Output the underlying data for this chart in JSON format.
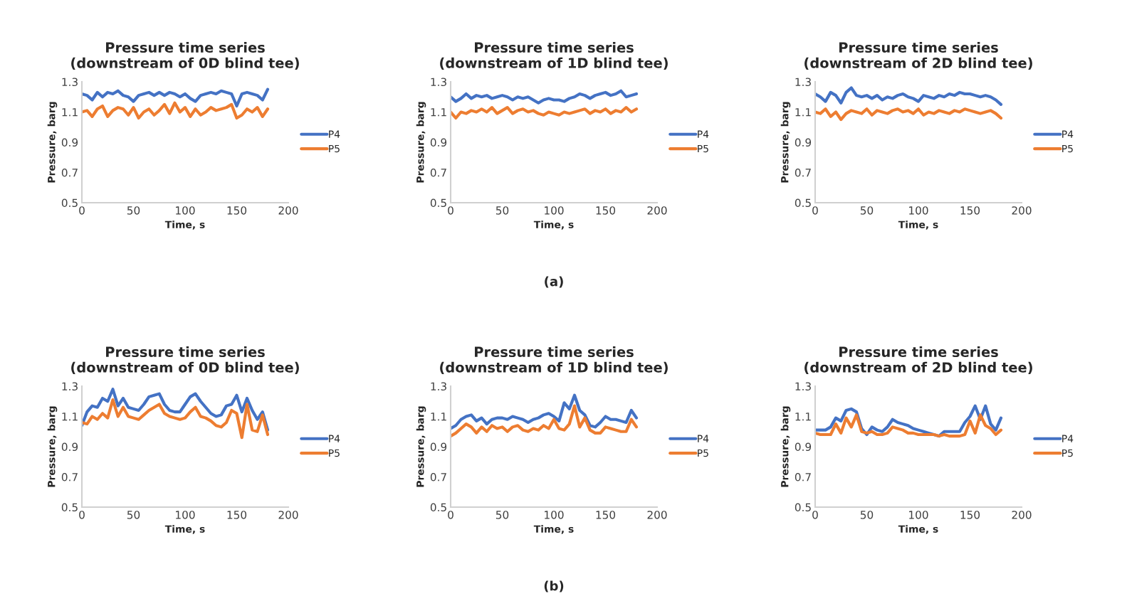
{
  "chart_data": [
    {
      "type": "line",
      "title": "Pressure time series\n(downstream of 0D blind tee)",
      "xlabel": "Time, s",
      "ylabel": "Pressure, barg",
      "xlim": [
        0,
        200
      ],
      "xticks": [
        0,
        50,
        100,
        150,
        200
      ],
      "ylim": [
        0.5,
        1.3
      ],
      "yticks": [
        0.5,
        0.7,
        0.9,
        1.1,
        1.3
      ],
      "grid": false,
      "legend": "right",
      "x": [
        0,
        5,
        10,
        15,
        20,
        25,
        30,
        35,
        40,
        45,
        50,
        55,
        60,
        65,
        70,
        75,
        80,
        85,
        90,
        95,
        100,
        105,
        110,
        115,
        120,
        125,
        130,
        135,
        140,
        145,
        150,
        155,
        160,
        165,
        170,
        175,
        180
      ],
      "series": [
        {
          "name": "P4",
          "color": "#4472c4",
          "values": [
            1.22,
            1.21,
            1.18,
            1.23,
            1.2,
            1.23,
            1.22,
            1.24,
            1.21,
            1.2,
            1.17,
            1.21,
            1.22,
            1.23,
            1.21,
            1.23,
            1.21,
            1.23,
            1.22,
            1.2,
            1.22,
            1.19,
            1.17,
            1.21,
            1.22,
            1.23,
            1.22,
            1.24,
            1.23,
            1.22,
            1.14,
            1.22,
            1.23,
            1.22,
            1.21,
            1.18,
            1.25
          ]
        },
        {
          "name": "P5",
          "color": "#ed7d31",
          "values": [
            1.1,
            1.11,
            1.07,
            1.12,
            1.14,
            1.07,
            1.11,
            1.13,
            1.12,
            1.08,
            1.13,
            1.06,
            1.1,
            1.12,
            1.08,
            1.11,
            1.15,
            1.09,
            1.16,
            1.1,
            1.13,
            1.07,
            1.12,
            1.08,
            1.1,
            1.13,
            1.11,
            1.12,
            1.13,
            1.15,
            1.06,
            1.08,
            1.12,
            1.1,
            1.13,
            1.07,
            1.12
          ]
        }
      ]
    },
    {
      "type": "line",
      "title": "Pressure time series\n(downstream of 1D blind tee)",
      "xlabel": "Time, s",
      "ylabel": "Pressure, barg",
      "xlim": [
        0,
        200
      ],
      "xticks": [
        0,
        50,
        100,
        150,
        200
      ],
      "ylim": [
        0.5,
        1.3
      ],
      "yticks": [
        0.5,
        0.7,
        0.9,
        1.1,
        1.3
      ],
      "grid": false,
      "legend": "right",
      "annotations": [
        "(a)"
      ],
      "x": [
        0,
        5,
        10,
        15,
        20,
        25,
        30,
        35,
        40,
        45,
        50,
        55,
        60,
        65,
        70,
        75,
        80,
        85,
        90,
        95,
        100,
        105,
        110,
        115,
        120,
        125,
        130,
        135,
        140,
        145,
        150,
        155,
        160,
        165,
        170,
        175,
        180
      ],
      "series": [
        {
          "name": "P4",
          "color": "#4472c4",
          "values": [
            1.2,
            1.17,
            1.19,
            1.22,
            1.19,
            1.21,
            1.2,
            1.21,
            1.19,
            1.2,
            1.21,
            1.2,
            1.18,
            1.2,
            1.19,
            1.2,
            1.18,
            1.16,
            1.18,
            1.19,
            1.18,
            1.18,
            1.17,
            1.19,
            1.2,
            1.22,
            1.21,
            1.19,
            1.21,
            1.22,
            1.23,
            1.21,
            1.22,
            1.24,
            1.2,
            1.21,
            1.22
          ]
        },
        {
          "name": "P5",
          "color": "#ed7d31",
          "values": [
            1.1,
            1.06,
            1.1,
            1.09,
            1.11,
            1.1,
            1.12,
            1.1,
            1.13,
            1.09,
            1.11,
            1.13,
            1.09,
            1.11,
            1.12,
            1.1,
            1.11,
            1.09,
            1.08,
            1.1,
            1.09,
            1.08,
            1.1,
            1.09,
            1.1,
            1.11,
            1.12,
            1.09,
            1.11,
            1.1,
            1.12,
            1.09,
            1.11,
            1.1,
            1.13,
            1.1,
            1.12
          ]
        }
      ]
    },
    {
      "type": "line",
      "title": "Pressure time series\n(downstream of 2D blind tee)",
      "xlabel": "Time, s",
      "ylabel": "Pressure, barg",
      "xlim": [
        0,
        200
      ],
      "xticks": [
        0,
        50,
        100,
        150,
        200
      ],
      "ylim": [
        0.5,
        1.3
      ],
      "yticks": [
        0.5,
        0.7,
        0.9,
        1.1,
        1.3
      ],
      "grid": false,
      "legend": "right",
      "x": [
        0,
        5,
        10,
        15,
        20,
        25,
        30,
        35,
        40,
        45,
        50,
        55,
        60,
        65,
        70,
        75,
        80,
        85,
        90,
        95,
        100,
        105,
        110,
        115,
        120,
        125,
        130,
        135,
        140,
        145,
        150,
        155,
        160,
        165,
        170,
        175,
        180
      ],
      "series": [
        {
          "name": "P4",
          "color": "#4472c4",
          "values": [
            1.22,
            1.2,
            1.17,
            1.23,
            1.21,
            1.16,
            1.23,
            1.26,
            1.21,
            1.2,
            1.21,
            1.19,
            1.21,
            1.18,
            1.2,
            1.19,
            1.21,
            1.22,
            1.2,
            1.19,
            1.17,
            1.21,
            1.2,
            1.19,
            1.21,
            1.2,
            1.22,
            1.21,
            1.23,
            1.22,
            1.22,
            1.21,
            1.2,
            1.21,
            1.2,
            1.18,
            1.15
          ]
        },
        {
          "name": "P5",
          "color": "#ed7d31",
          "values": [
            1.1,
            1.09,
            1.12,
            1.07,
            1.1,
            1.05,
            1.09,
            1.11,
            1.1,
            1.09,
            1.12,
            1.08,
            1.11,
            1.1,
            1.09,
            1.11,
            1.12,
            1.1,
            1.11,
            1.09,
            1.12,
            1.08,
            1.1,
            1.09,
            1.11,
            1.1,
            1.09,
            1.11,
            1.1,
            1.12,
            1.11,
            1.1,
            1.09,
            1.1,
            1.11,
            1.09,
            1.06
          ]
        }
      ]
    },
    {
      "type": "line",
      "title": "Pressure time series\n(downstream of 0D blind tee)",
      "xlabel": "Time, s",
      "ylabel": "Pressure, barg",
      "xlim": [
        0,
        200
      ],
      "xticks": [
        0,
        50,
        100,
        150,
        200
      ],
      "ylim": [
        0.5,
        1.3
      ],
      "yticks": [
        0.5,
        0.7,
        0.9,
        1.1,
        1.3
      ],
      "grid": false,
      "legend": "right",
      "x": [
        0,
        5,
        10,
        15,
        20,
        25,
        30,
        35,
        40,
        45,
        50,
        55,
        60,
        65,
        70,
        75,
        80,
        85,
        90,
        95,
        100,
        105,
        110,
        115,
        120,
        125,
        130,
        135,
        140,
        145,
        150,
        155,
        160,
        165,
        170,
        175,
        180
      ],
      "series": [
        {
          "name": "P4",
          "color": "#4472c4",
          "values": [
            1.04,
            1.13,
            1.17,
            1.16,
            1.22,
            1.2,
            1.28,
            1.17,
            1.22,
            1.16,
            1.15,
            1.14,
            1.18,
            1.23,
            1.24,
            1.25,
            1.18,
            1.14,
            1.13,
            1.13,
            1.18,
            1.23,
            1.25,
            1.2,
            1.16,
            1.12,
            1.1,
            1.11,
            1.17,
            1.18,
            1.24,
            1.13,
            1.22,
            1.14,
            1.08,
            1.13,
            1.01
          ]
        },
        {
          "name": "P5",
          "color": "#ed7d31",
          "values": [
            1.06,
            1.05,
            1.1,
            1.08,
            1.12,
            1.09,
            1.21,
            1.1,
            1.16,
            1.1,
            1.09,
            1.08,
            1.11,
            1.14,
            1.16,
            1.18,
            1.12,
            1.1,
            1.09,
            1.08,
            1.09,
            1.13,
            1.16,
            1.1,
            1.09,
            1.07,
            1.04,
            1.03,
            1.06,
            1.14,
            1.12,
            0.96,
            1.18,
            1.01,
            1.0,
            1.11,
            0.98
          ]
        }
      ]
    },
    {
      "type": "line",
      "title": "Pressure time series\n(downstream of 1D blind tee)",
      "xlabel": "Time, s",
      "ylabel": "Pressure, barg",
      "xlim": [
        0,
        200
      ],
      "xticks": [
        0,
        50,
        100,
        150,
        200
      ],
      "ylim": [
        0.5,
        1.3
      ],
      "yticks": [
        0.5,
        0.7,
        0.9,
        1.1,
        1.3
      ],
      "grid": false,
      "legend": "right",
      "annotations": [
        "(b)"
      ],
      "x": [
        0,
        5,
        10,
        15,
        20,
        25,
        30,
        35,
        40,
        45,
        50,
        55,
        60,
        65,
        70,
        75,
        80,
        85,
        90,
        95,
        100,
        105,
        110,
        115,
        120,
        125,
        130,
        135,
        140,
        145,
        150,
        155,
        160,
        165,
        170,
        175,
        180
      ],
      "series": [
        {
          "name": "P4",
          "color": "#4472c4",
          "values": [
            1.02,
            1.04,
            1.08,
            1.1,
            1.11,
            1.07,
            1.09,
            1.05,
            1.08,
            1.09,
            1.09,
            1.08,
            1.1,
            1.09,
            1.08,
            1.06,
            1.08,
            1.09,
            1.11,
            1.12,
            1.1,
            1.07,
            1.19,
            1.15,
            1.24,
            1.14,
            1.11,
            1.04,
            1.03,
            1.06,
            1.1,
            1.08,
            1.08,
            1.07,
            1.06,
            1.14,
            1.09
          ]
        },
        {
          "name": "P5",
          "color": "#ed7d31",
          "values": [
            0.97,
            0.99,
            1.02,
            1.05,
            1.03,
            0.99,
            1.03,
            1.0,
            1.04,
            1.02,
            1.03,
            1.0,
            1.03,
            1.04,
            1.01,
            1.0,
            1.02,
            1.01,
            1.04,
            1.02,
            1.08,
            1.02,
            1.01,
            1.05,
            1.17,
            1.03,
            1.09,
            1.01,
            0.99,
            0.99,
            1.03,
            1.02,
            1.01,
            1.0,
            1.0,
            1.08,
            1.03
          ]
        }
      ]
    },
    {
      "type": "line",
      "title": "Pressure time series\n(downstream of 2D blind tee)",
      "xlabel": "Time, s",
      "ylabel": "Pressure, barg",
      "xlim": [
        0,
        200
      ],
      "xticks": [
        0,
        50,
        100,
        150,
        200
      ],
      "ylim": [
        0.5,
        1.3
      ],
      "yticks": [
        0.5,
        0.7,
        0.9,
        1.1,
        1.3
      ],
      "grid": false,
      "legend": "right",
      "x": [
        0,
        5,
        10,
        15,
        20,
        25,
        30,
        35,
        40,
        45,
        50,
        55,
        60,
        65,
        70,
        75,
        80,
        85,
        90,
        95,
        100,
        105,
        110,
        115,
        120,
        125,
        130,
        135,
        140,
        145,
        150,
        155,
        160,
        165,
        170,
        175,
        180
      ],
      "series": [
        {
          "name": "P4",
          "color": "#4472c4",
          "values": [
            1.01,
            1.01,
            1.01,
            1.03,
            1.09,
            1.07,
            1.14,
            1.15,
            1.13,
            1.02,
            0.98,
            1.03,
            1.01,
            1.0,
            1.03,
            1.08,
            1.06,
            1.05,
            1.04,
            1.02,
            1.01,
            1.0,
            0.99,
            0.98,
            0.97,
            1.0,
            1.0,
            1.0,
            1.0,
            1.06,
            1.1,
            1.17,
            1.08,
            1.17,
            1.05,
            1.01,
            1.09
          ]
        },
        {
          "name": "P5",
          "color": "#ed7d31",
          "values": [
            0.99,
            0.98,
            0.98,
            0.98,
            1.05,
            0.99,
            1.09,
            1.03,
            1.11,
            1.0,
            0.99,
            1.0,
            0.98,
            0.98,
            0.99,
            1.03,
            1.02,
            1.01,
            0.99,
            0.99,
            0.98,
            0.98,
            0.98,
            0.98,
            0.97,
            0.98,
            0.97,
            0.97,
            0.97,
            0.98,
            1.07,
            0.99,
            1.11,
            1.04,
            1.02,
            0.98,
            1.01
          ]
        }
      ]
    }
  ]
}
